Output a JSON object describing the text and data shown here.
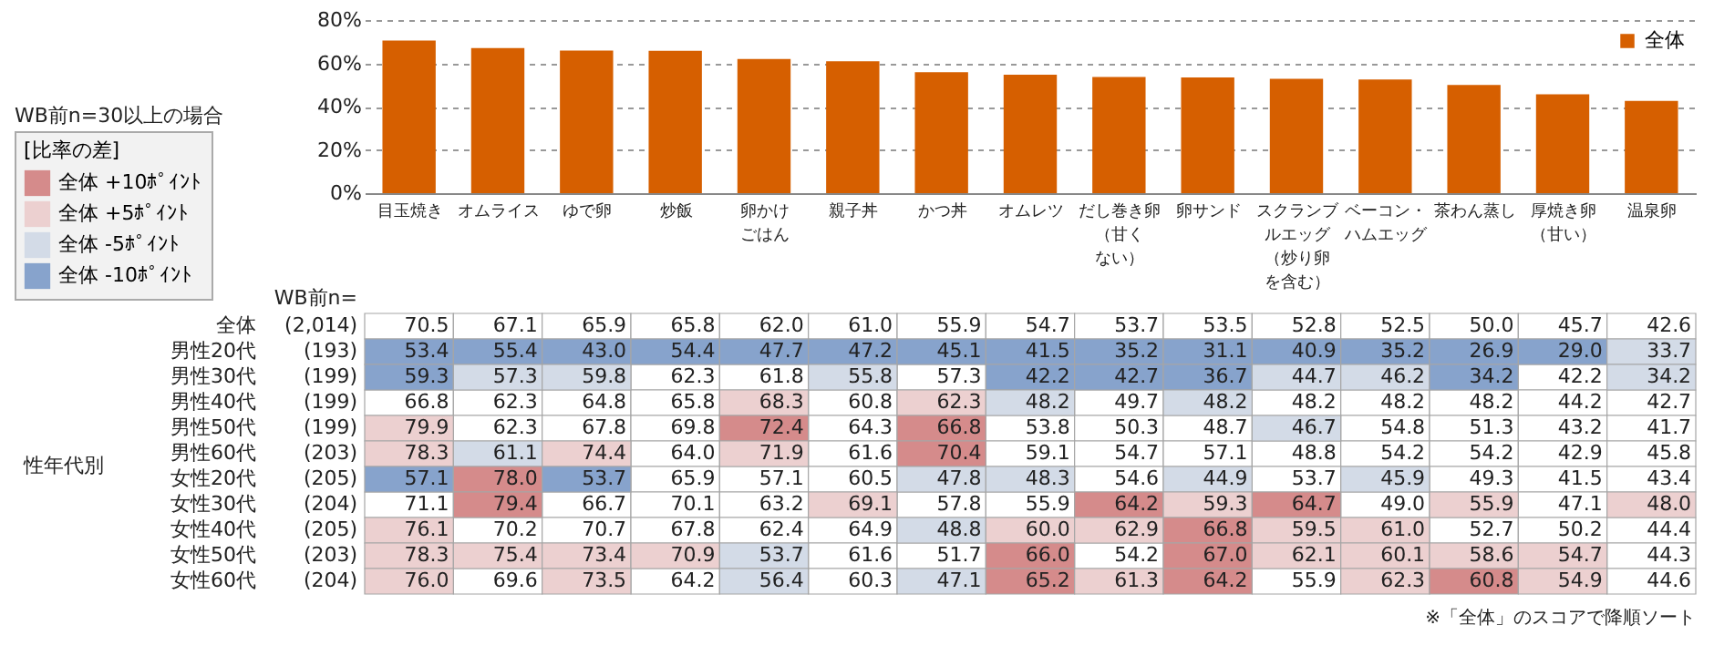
{
  "chart_data": [
    {
      "type": "bar",
      "categories": [
        "目玉焼き",
        "オムライス",
        "ゆで卵",
        "炒飯",
        "卵かけごはん",
        "親子丼",
        "かつ丼",
        "オムレツ",
        "だし巻き卵（甘くない）",
        "卵サンド",
        "スクランブルエッグ（炒り卵を含む）",
        "ベーコン・ハムエッグ",
        "茶わん蒸し",
        "厚焼き卵（甘い）",
        "温泉卵"
      ],
      "series": [
        {
          "name": "全体",
          "color": "#d65f00",
          "values": [
            70.5,
            67.1,
            65.9,
            65.8,
            62.0,
            61.0,
            55.9,
            54.7,
            53.7,
            53.5,
            52.8,
            52.5,
            50.0,
            45.7,
            42.6
          ]
        }
      ],
      "ylim": [
        0,
        80
      ],
      "yticks": [
        {
          "value": 0,
          "label": "0%"
        },
        {
          "value": 20,
          "label": "20%"
        },
        {
          "value": 40,
          "label": "40%"
        },
        {
          "value": 60,
          "label": "60%"
        },
        {
          "value": 80,
          "label": "80%"
        }
      ],
      "grid": "y",
      "legend": "top right"
    },
    {
      "type": "heatmap",
      "categories": [
        "目玉焼き",
        "オムライス",
        "ゆで卵",
        "炒飯",
        "卵かけごはん",
        "親子丼",
        "かつ丼",
        "オムレツ",
        "だし巻き卵（甘くない）",
        "卵サンド",
        "スクランブルエッグ（炒り卵を含む）",
        "ベーコン・ハムエッグ",
        "茶わん蒸し",
        "厚焼き卵（甘い）",
        "温泉卵"
      ],
      "y_categories": [
        "全体",
        "男性20代",
        "男性30代",
        "男性40代",
        "男性50代",
        "男性60代",
        "女性20代",
        "女性30代",
        "女性40代",
        "女性50代",
        "女性60代"
      ],
      "y2_categories": [
        "(2,014)",
        "(193)",
        "(199)",
        "(199)",
        "(199)",
        "(203)",
        "(205)",
        "(204)",
        "(205)",
        "(203)",
        "(204)"
      ],
      "y2label": "WB前n=",
      "cells": [
        [
          70.5,
          67.1,
          65.9,
          65.8,
          62.0,
          61.0,
          55.9,
          54.7,
          53.7,
          53.5,
          52.8,
          52.5,
          50.0,
          45.7,
          42.6
        ],
        [
          53.4,
          55.4,
          43.0,
          54.4,
          47.7,
          47.2,
          45.1,
          41.5,
          35.2,
          31.1,
          40.9,
          35.2,
          26.9,
          29.0,
          33.7
        ],
        [
          59.3,
          57.3,
          59.8,
          62.3,
          61.8,
          55.8,
          57.3,
          42.2,
          42.7,
          36.7,
          44.7,
          46.2,
          34.2,
          42.2,
          34.2
        ],
        [
          66.8,
          62.3,
          64.8,
          65.8,
          68.3,
          60.8,
          62.3,
          48.2,
          49.7,
          48.2,
          48.2,
          48.2,
          48.2,
          44.2,
          42.7
        ],
        [
          79.9,
          62.3,
          67.8,
          69.8,
          72.4,
          64.3,
          66.8,
          53.8,
          50.3,
          48.7,
          46.7,
          54.8,
          51.3,
          43.2,
          41.7
        ],
        [
          78.3,
          61.1,
          74.4,
          64.0,
          71.9,
          61.6,
          70.4,
          59.1,
          54.7,
          57.1,
          48.8,
          54.2,
          54.2,
          42.9,
          45.8
        ],
        [
          57.1,
          78.0,
          53.7,
          65.9,
          57.1,
          60.5,
          47.8,
          48.3,
          54.6,
          44.9,
          53.7,
          45.9,
          49.3,
          41.5,
          43.4
        ],
        [
          71.1,
          79.4,
          66.7,
          70.1,
          63.2,
          69.1,
          57.8,
          55.9,
          64.2,
          59.3,
          64.7,
          49.0,
          55.9,
          47.1,
          48.0
        ],
        [
          76.1,
          70.2,
          70.7,
          67.8,
          62.4,
          64.9,
          48.8,
          60.0,
          62.9,
          66.8,
          59.5,
          61.0,
          52.7,
          50.2,
          44.4
        ],
        [
          78.3,
          75.4,
          73.4,
          70.9,
          53.7,
          61.6,
          51.7,
          66.0,
          54.2,
          67.0,
          62.1,
          60.1,
          58.6,
          54.7,
          44.3
        ],
        [
          76.0,
          69.6,
          73.5,
          64.2,
          56.4,
          60.3,
          47.1,
          65.2,
          61.3,
          64.2,
          55.9,
          62.3,
          60.8,
          54.9,
          44.6
        ]
      ],
      "colors": [
        [
          null,
          null,
          null,
          null,
          null,
          null,
          null,
          null,
          null,
          null,
          null,
          null,
          null,
          null,
          null
        ],
        [
          "#87a3cc",
          "#87a3cc",
          "#87a3cc",
          "#87a3cc",
          "#87a3cc",
          "#87a3cc",
          "#87a3cc",
          "#87a3cc",
          "#87a3cc",
          "#87a3cc",
          "#87a3cc",
          "#87a3cc",
          "#87a3cc",
          "#87a3cc",
          "#d3dbe7"
        ],
        [
          "#87a3cc",
          "#d3dbe7",
          "#d3dbe7",
          null,
          null,
          "#d3dbe7",
          null,
          "#87a3cc",
          "#87a3cc",
          "#87a3cc",
          "#d3dbe7",
          "#d3dbe7",
          "#87a3cc",
          null,
          "#d3dbe7"
        ],
        [
          null,
          null,
          null,
          null,
          "#ecd0d0",
          null,
          "#ecd0d0",
          "#d3dbe7",
          null,
          "#d3dbe7",
          null,
          null,
          null,
          null,
          null
        ],
        [
          "#ecd0d0",
          null,
          null,
          null,
          "#d58b8b",
          null,
          "#d58b8b",
          null,
          null,
          null,
          "#d3dbe7",
          null,
          null,
          null,
          null
        ],
        [
          "#ecd0d0",
          "#d3dbe7",
          "#ecd0d0",
          null,
          "#ecd0d0",
          null,
          "#d58b8b",
          null,
          null,
          null,
          null,
          null,
          null,
          null,
          null
        ],
        [
          "#87a3cc",
          "#d58b8b",
          "#87a3cc",
          null,
          null,
          null,
          "#d3dbe7",
          "#d3dbe7",
          null,
          "#d3dbe7",
          null,
          "#d3dbe7",
          null,
          null,
          null
        ],
        [
          null,
          "#d58b8b",
          null,
          null,
          null,
          "#ecd0d0",
          null,
          null,
          "#d58b8b",
          "#ecd0d0",
          "#d58b8b",
          null,
          "#ecd0d0",
          null,
          "#ecd0d0"
        ],
        [
          "#ecd0d0",
          null,
          null,
          null,
          null,
          null,
          "#d3dbe7",
          "#ecd0d0",
          "#ecd0d0",
          "#d58b8b",
          "#ecd0d0",
          "#ecd0d0",
          null,
          null,
          null
        ],
        [
          "#ecd0d0",
          "#ecd0d0",
          "#ecd0d0",
          "#ecd0d0",
          "#d3dbe7",
          null,
          null,
          "#d58b8b",
          null,
          "#d58b8b",
          "#ecd0d0",
          "#ecd0d0",
          "#ecd0d0",
          "#ecd0d0",
          null
        ],
        [
          "#ecd0d0",
          null,
          "#ecd0d0",
          null,
          "#d3dbe7",
          null,
          "#d3dbe7",
          "#d58b8b",
          "#ecd0d0",
          "#d58b8b",
          null,
          "#ecd0d0",
          "#d58b8b",
          "#ecd0d0",
          null
        ]
      ],
      "tick_labels": "y",
      "data_labels": true,
      "cell_labels": [
        [
          "70.5",
          "67.1",
          "65.9",
          "65.8",
          "62.0",
          "61.0",
          "55.9",
          "54.7",
          "53.7",
          "53.5",
          "52.8",
          "52.5",
          "50.0",
          "45.7",
          "42.6"
        ],
        [
          "53.4",
          "55.4",
          "43.0",
          "54.4",
          "47.7",
          "47.2",
          "45.1",
          "41.5",
          "35.2",
          "31.1",
          "40.9",
          "35.2",
          "26.9",
          "29.0",
          "33.7"
        ],
        [
          "59.3",
          "57.3",
          "59.8",
          "62.3",
          "61.8",
          "55.8",
          "57.3",
          "42.2",
          "42.7",
          "36.7",
          "44.7",
          "46.2",
          "34.2",
          "42.2",
          "34.2"
        ],
        [
          "66.8",
          "62.3",
          "64.8",
          "65.8",
          "68.3",
          "60.8",
          "62.3",
          "48.2",
          "49.7",
          "48.2",
          "48.2",
          "48.2",
          "48.2",
          "44.2",
          "42.7"
        ],
        [
          "79.9",
          "62.3",
          "67.8",
          "69.8",
          "72.4",
          "64.3",
          "66.8",
          "53.8",
          "50.3",
          "48.7",
          "46.7",
          "54.8",
          "51.3",
          "43.2",
          "41.7"
        ],
        [
          "78.3",
          "61.1",
          "74.4",
          "64.0",
          "71.9",
          "61.6",
          "70.4",
          "59.1",
          "54.7",
          "57.1",
          "48.8",
          "54.2",
          "54.2",
          "42.9",
          "45.8"
        ],
        [
          "57.1",
          "78.0",
          "53.7",
          "65.9",
          "57.1",
          "60.5",
          "47.8",
          "48.3",
          "54.6",
          "44.9",
          "53.7",
          "45.9",
          "49.3",
          "41.5",
          "43.4"
        ],
        [
          "71.1",
          "79.4",
          "66.7",
          "70.1",
          "63.2",
          "69.1",
          "57.8",
          "55.9",
          "64.2",
          "59.3",
          "64.7",
          "49.0",
          "55.9",
          "47.1",
          "48.0"
        ],
        [
          "76.1",
          "70.2",
          "70.7",
          "67.8",
          "62.4",
          "64.9",
          "48.8",
          "60.0",
          "62.9",
          "66.8",
          "59.5",
          "61.0",
          "52.7",
          "50.2",
          "44.4"
        ],
        [
          "78.3",
          "75.4",
          "73.4",
          "70.9",
          "53.7",
          "61.6",
          "51.7",
          "66.0",
          "54.2",
          "67.0",
          "62.1",
          "60.1",
          "58.6",
          "54.7",
          "44.3"
        ],
        [
          "76.0",
          "69.6",
          "73.5",
          "64.2",
          "56.4",
          "60.3",
          "47.1",
          "65.2",
          "61.3",
          "64.2",
          "55.9",
          "62.3",
          "60.8",
          "54.9",
          "44.6"
        ]
      ],
      "annotations": [
        "WB前n=30以上の場合",
        "性年代別",
        "※「全体」のスコアで降順ソート"
      ]
    },
    {
      "type": "other",
      "legend_title": "[比率の差]",
      "legend": "top left",
      "series": [
        {
          "name": "全体 +10ﾎﾟｲﾝﾄ",
          "color": "#d58b8b"
        },
        {
          "name": "全体 +5ﾎﾟｲﾝﾄ",
          "color": "#ecd0d0"
        },
        {
          "name": "全体 -5ﾎﾟｲﾝﾄ",
          "color": "#d3dbe7"
        },
        {
          "name": "全体 -10ﾎﾟｲﾝﾄ",
          "color": "#87a3cc"
        }
      ]
    }
  ]
}
